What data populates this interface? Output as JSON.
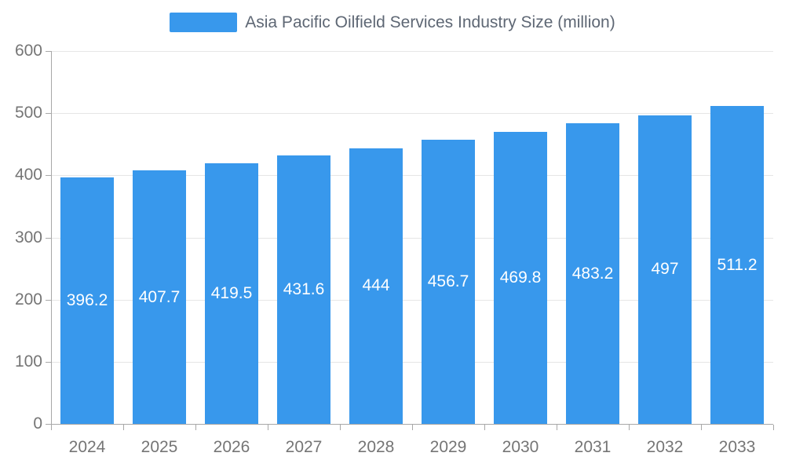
{
  "chart_data": {
    "type": "bar",
    "title": "Asia Pacific Oilfield Services Industry Size (million)",
    "categories": [
      "2024",
      "2025",
      "2026",
      "2027",
      "2028",
      "2029",
      "2030",
      "2031",
      "2032",
      "2033"
    ],
    "values": [
      396.2,
      407.7,
      419.5,
      431.6,
      444,
      456.7,
      469.8,
      483.2,
      497,
      511.2
    ],
    "value_labels": [
      "396.2",
      "407.7",
      "419.5",
      "431.6",
      "444",
      "456.7",
      "469.8",
      "483.2",
      "497",
      "511.2"
    ],
    "xlabel": "",
    "ylabel": "",
    "ylim": [
      0,
      600
    ],
    "y_ticks": [
      0,
      100,
      200,
      300,
      400,
      500,
      600
    ],
    "y_tick_labels": [
      "0",
      "100",
      "200",
      "300",
      "400",
      "500",
      "600"
    ],
    "grid": true,
    "legend_position": "top",
    "colors": {
      "bar": "#3898ec",
      "bar_value_label": "#ffffff",
      "axis_line": "#a8a8a8",
      "gridline": "#e6e6e6",
      "axis_text": "#757575",
      "legend_text": "#5e6774"
    },
    "legend": {
      "label": "Asia Pacific Oilfield Services Industry Size (million)",
      "swatch_color": "#3898ec"
    }
  }
}
